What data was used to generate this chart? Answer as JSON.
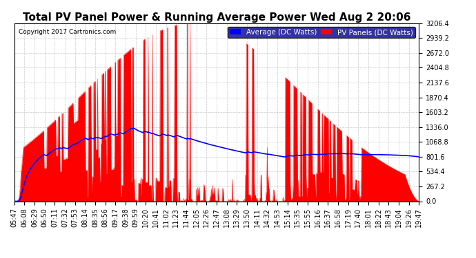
{
  "title": "Total PV Panel Power & Running Average Power Wed Aug 2 20:06",
  "copyright": "Copyright 2017 Cartronics.com",
  "legend_avg": "Average (DC Watts)",
  "legend_pv": "PV Panels (DC Watts)",
  "yticks": [
    0.0,
    267.2,
    534.4,
    801.6,
    1068.8,
    1336.0,
    1603.2,
    1870.4,
    2137.6,
    2404.8,
    2672.0,
    2939.2,
    3206.4
  ],
  "ymax": 3206.4,
  "ymin": 0.0,
  "pv_color": "#FF0000",
  "avg_color": "#0000FF",
  "bg_color": "#FFFFFF",
  "grid_color": "#BBBBBB",
  "title_fontsize": 11,
  "tick_fontsize": 7,
  "legend_fontsize": 7.5
}
